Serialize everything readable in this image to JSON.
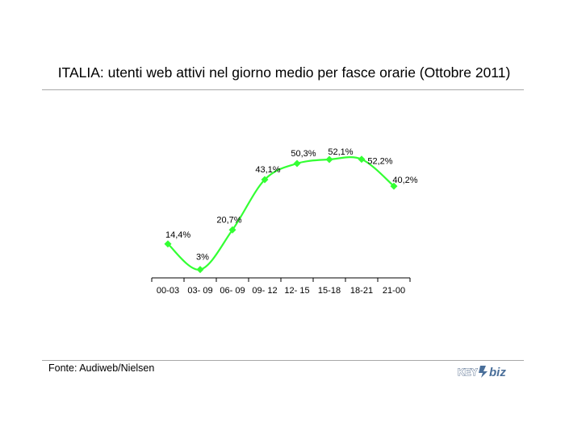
{
  "header": {
    "title": "ITALIA: utenti web attivi nel giorno medio per fasce orarie (Ottobre 2011)"
  },
  "footer": {
    "source": "Fonte: Audiweb/Nielsen",
    "logo_text": "KEY4biz"
  },
  "colors": {
    "series": "#33ff33",
    "axis": "#000000",
    "rule": "#a8a8a8"
  },
  "chart_data": {
    "type": "line",
    "categories": [
      "00-03",
      "03- 09",
      "06- 09",
      "09- 12",
      "12- 15",
      "15-18",
      "18-21",
      "21-00"
    ],
    "values": [
      14.4,
      3,
      20.7,
      43.1,
      50.3,
      52.1,
      52.2,
      40.2
    ],
    "labels": [
      "14,4%",
      "3%",
      "20,7%",
      "43,1%",
      "50,3%",
      "52,1%",
      "52,2%",
      "40,2%"
    ],
    "smoothed": true,
    "marker": "diamond",
    "grid": false,
    "legend": "none",
    "ylim": [
      0,
      60
    ]
  }
}
